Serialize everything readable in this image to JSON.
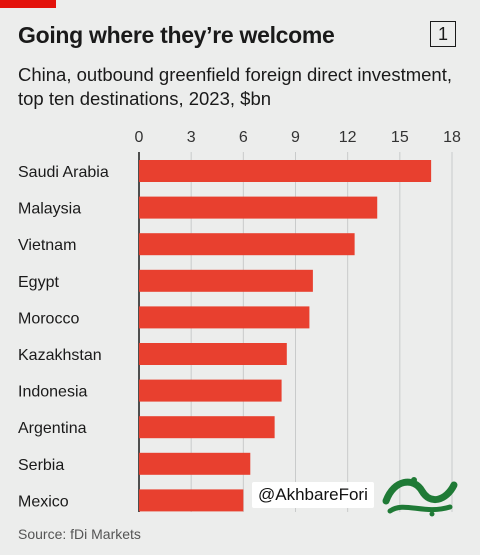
{
  "header": {
    "title": "Going where they’re welcome",
    "chart_number": "1",
    "subtitle": "China, outbound greenfield foreign direct investment, top ten destinations, 2023, $bn"
  },
  "footer": {
    "source": "Source: fDi Markets"
  },
  "watermark": {
    "handle": "@AkhbareFori",
    "logo_text": "خبر فوری"
  },
  "colors": {
    "bar": "#e8402f",
    "background": "#ecedec",
    "accent": "#e3120b",
    "grid": "#c9cbcb",
    "logo_green": "#1f7a36"
  },
  "chart_data": {
    "type": "bar",
    "orientation": "horizontal",
    "title": "Going where they’re welcome",
    "subtitle": "China, outbound greenfield foreign direct investment, top ten destinations, 2023, $bn",
    "categories": [
      "Saudi Arabia",
      "Malaysia",
      "Vietnam",
      "Egypt",
      "Morocco",
      "Kazakhstan",
      "Indonesia",
      "Argentina",
      "Serbia",
      "Mexico"
    ],
    "values": [
      16.8,
      13.7,
      12.4,
      10.0,
      9.8,
      8.5,
      8.2,
      7.8,
      6.4,
      6.0
    ],
    "xlim": [
      0,
      18
    ],
    "ticks": [
      0,
      3,
      6,
      9,
      12,
      15,
      18
    ],
    "tick_labels": [
      "0",
      "3",
      "6",
      "9",
      "12",
      "15",
      "18"
    ],
    "axis_position": "top",
    "grid": true,
    "legend": "none"
  }
}
